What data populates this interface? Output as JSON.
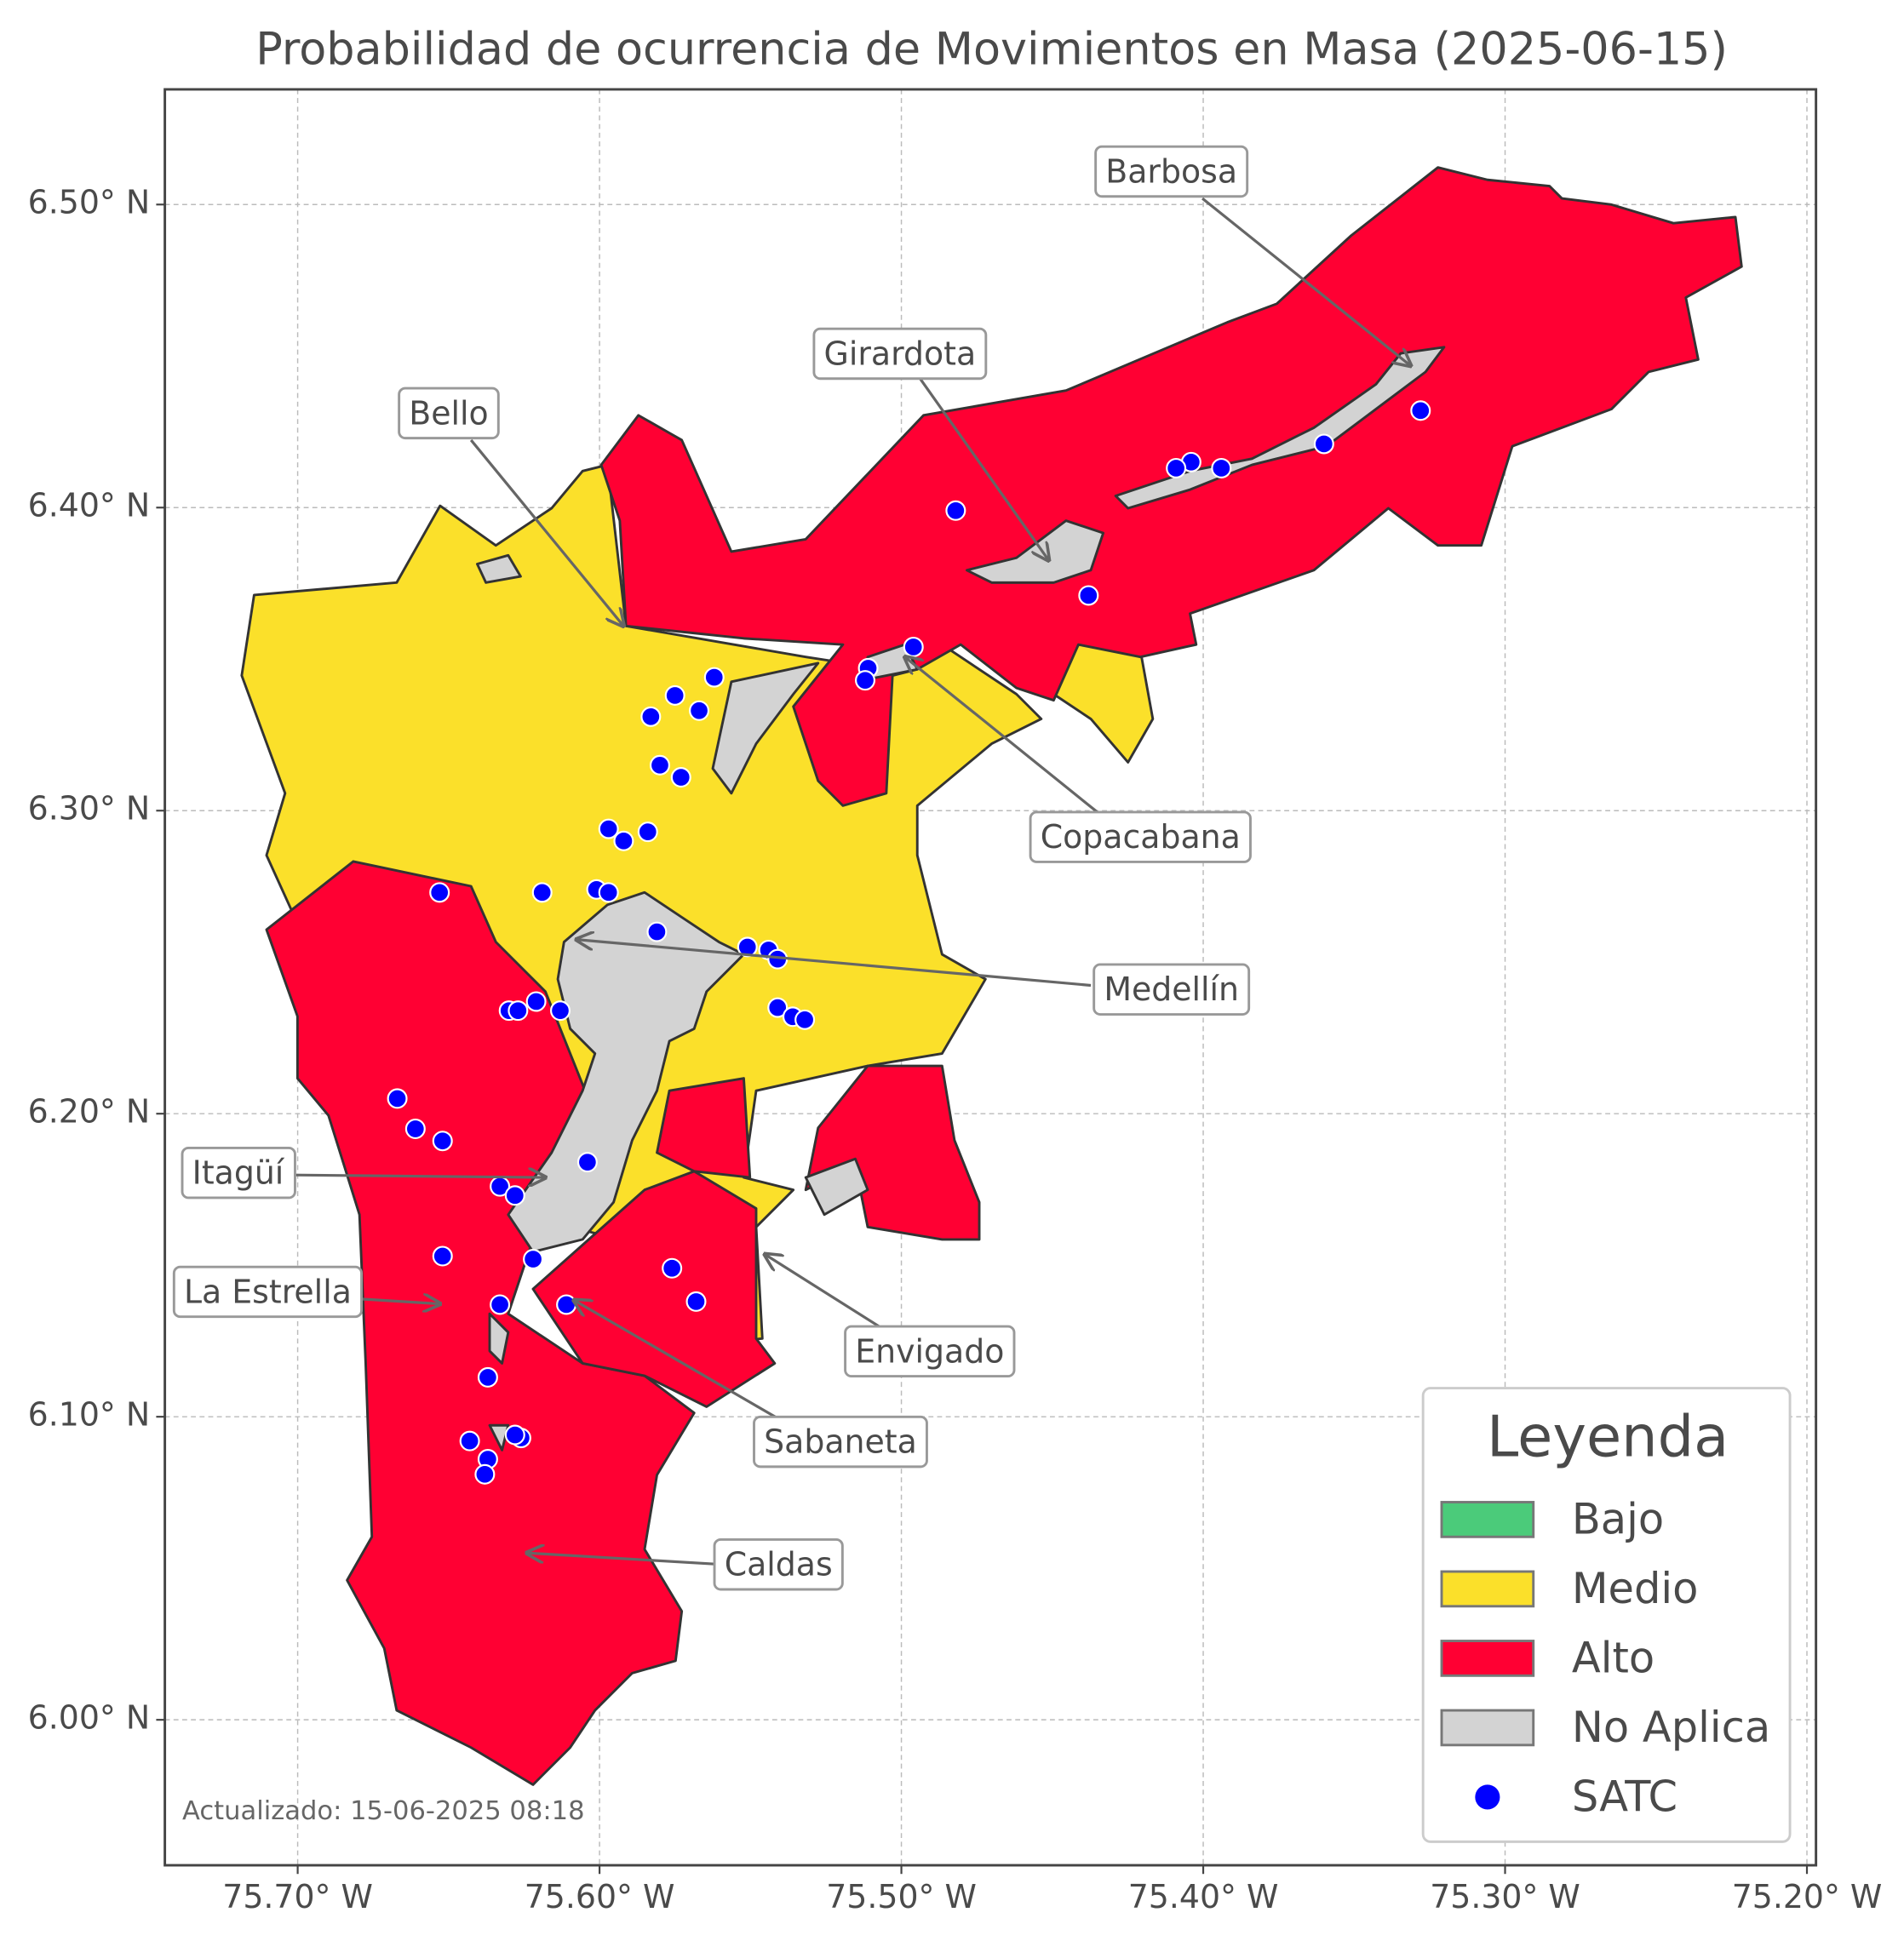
{
  "chart_data": {
    "type": "map",
    "title": "Probabilidad de ocurrencia de Movimientos en Masa (2025-06-15)",
    "xlim": [
      -75.744,
      -75.197
    ],
    "ylim": [
      5.952,
      6.538
    ],
    "xticks": [
      {
        "value": -75.7,
        "label": "75.70° W"
      },
      {
        "value": -75.6,
        "label": "75.60° W"
      },
      {
        "value": -75.5,
        "label": "75.50° W"
      },
      {
        "value": -75.4,
        "label": "75.40° W"
      },
      {
        "value": -75.3,
        "label": "75.30° W"
      },
      {
        "value": -75.2,
        "label": "75.20° W"
      }
    ],
    "yticks": [
      {
        "value": 6.0,
        "label": "6.00° N"
      },
      {
        "value": 6.1,
        "label": "6.10° N"
      },
      {
        "value": 6.2,
        "label": "6.20° N"
      },
      {
        "value": 6.3,
        "label": "6.30° N"
      },
      {
        "value": 6.4,
        "label": "6.40° N"
      },
      {
        "value": 6.5,
        "label": "6.50° N"
      }
    ],
    "grid": true,
    "legend": {
      "title": "Leyenda",
      "items": [
        {
          "label": "Bajo",
          "color": "#4bcb7a"
        },
        {
          "label": "Medio",
          "color": "#fbe02a"
        },
        {
          "label": "Alto",
          "color": "#ff0033"
        },
        {
          "label": "No Aplica",
          "color": "#d3d3d3"
        },
        {
          "label": "SATC",
          "color": "#0000ff"
        }
      ]
    },
    "stations": {
      "lon": [
        -75.328,
        -75.36,
        -75.394,
        -75.404,
        -75.409,
        -75.482,
        -75.438,
        -75.496,
        -75.511,
        -75.512,
        -75.562,
        -75.575,
        -75.567,
        -75.583,
        -75.58,
        -75.573,
        -75.597,
        -75.592,
        -75.584,
        -75.653,
        -75.619,
        -75.601,
        -75.597,
        -75.581,
        -75.551,
        -75.544,
        -75.541,
        -75.541,
        -75.536,
        -75.532,
        -75.63,
        -75.627,
        -75.621,
        -75.613,
        -75.667,
        -75.661,
        -75.652,
        -75.604,
        -75.633,
        -75.628,
        -75.652,
        -75.622,
        -75.576,
        -75.568,
        -75.633,
        -75.611,
        -75.637,
        -75.643,
        -75.626,
        -75.628,
        -75.637,
        -75.638
      ],
      "lat": [
        6.432,
        6.421,
        6.413,
        6.415,
        6.413,
        6.399,
        6.371,
        6.354,
        6.347,
        6.343,
        6.344,
        6.338,
        6.333,
        6.331,
        6.315,
        6.311,
        6.294,
        6.29,
        6.293,
        6.273,
        6.273,
        6.274,
        6.273,
        6.26,
        6.255,
        6.254,
        6.251,
        6.235,
        6.232,
        6.231,
        6.234,
        6.234,
        6.237,
        6.234,
        6.205,
        6.195,
        6.191,
        6.184,
        6.176,
        6.173,
        6.153,
        6.152,
        6.149,
        6.138,
        6.137,
        6.137,
        6.113,
        6.092,
        6.093,
        6.094,
        6.086,
        6.081
      ]
    },
    "annotations": [
      "Barbosa",
      "Girardota",
      "Bello",
      "Copacabana",
      "Medellín",
      "Itagüí",
      "La Estrella",
      "Envigado",
      "Sabaneta",
      "Caldas"
    ],
    "footnote": "Actualizado: 15-06-2025 08:18"
  }
}
